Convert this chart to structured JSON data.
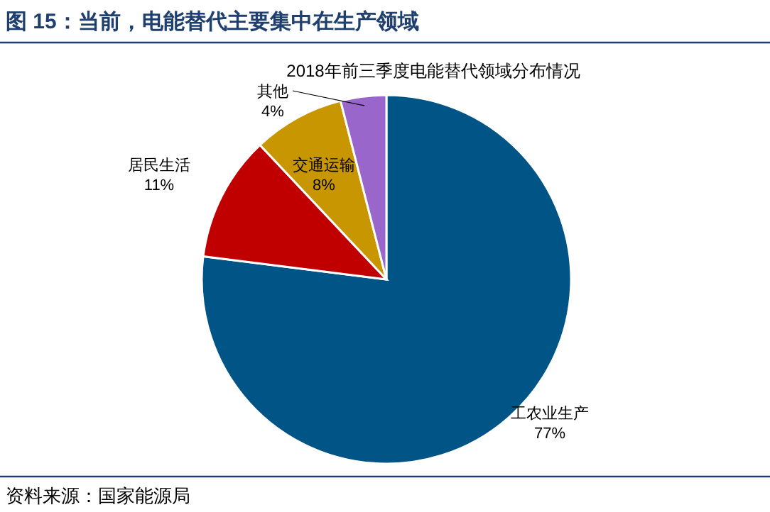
{
  "chart_data": {
    "type": "pie",
    "title": "图 15：当前，电能替代主要集中在生产领域",
    "subtitle": "2018年前三季度电能替代领域分布情况",
    "categories": [
      "工农业生产",
      "居民生活",
      "交通运输",
      "其他"
    ],
    "values": [
      77,
      11,
      8,
      4
    ],
    "colors": [
      "#005586",
      "#c00000",
      "#c89600",
      "#9966cc"
    ],
    "value_labels": [
      "77%",
      "11%",
      "8%",
      "4%"
    ],
    "annotations": [
      "资料来源：国家能源局"
    ]
  }
}
